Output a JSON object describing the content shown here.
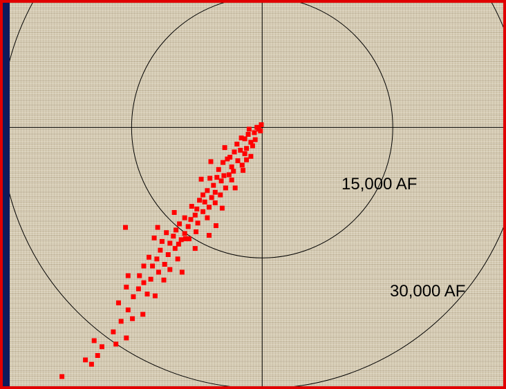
{
  "colors": {
    "points": "#ff0000",
    "border": "#e00000",
    "background": "#d6ccb4",
    "lines": "#000000",
    "left_strip": "#0e1a5c"
  },
  "chart_data": {
    "type": "scatter",
    "title": "",
    "xlabel": "",
    "ylabel": "",
    "rings": [
      {
        "label": "15,000 AF",
        "radius": 15000
      },
      {
        "label": "30,000 AF",
        "radius": 30000
      }
    ],
    "xlim": [
      -29000,
      28000
    ],
    "ylim": [
      -29500,
      14200
    ],
    "grid": false,
    "legend": "none",
    "series": [
      {
        "marker": "square",
        "points": [
          [
            -200,
            -400
          ],
          [
            -400,
            -200
          ],
          [
            -600,
            0
          ],
          [
            -100,
            300
          ],
          [
            -1500,
            -200
          ],
          [
            -900,
            -600
          ],
          [
            -1600,
            -800
          ],
          [
            -2000,
            -1300
          ],
          [
            -800,
            -1400
          ],
          [
            -1300,
            -1700
          ],
          [
            -2400,
            -1200
          ],
          [
            -2900,
            -1900
          ],
          [
            -1800,
            -2400
          ],
          [
            -1100,
            -2100
          ],
          [
            -2500,
            -2600
          ],
          [
            -2000,
            -3000
          ],
          [
            -1300,
            -3300
          ],
          [
            -3200,
            -2800
          ],
          [
            -3700,
            -3400
          ],
          [
            -2800,
            -3800
          ],
          [
            -1800,
            -3700
          ],
          [
            -2300,
            -4300
          ],
          [
            -3500,
            -4500
          ],
          [
            -4000,
            -3600
          ],
          [
            -4500,
            -4000
          ],
          [
            -3300,
            -5000
          ],
          [
            -2200,
            -4900
          ],
          [
            -3800,
            -5400
          ],
          [
            -4400,
            -5500
          ],
          [
            -5000,
            -4800
          ],
          [
            -4700,
            -6100
          ],
          [
            -5200,
            -5700
          ],
          [
            -3500,
            -6000
          ],
          [
            -4200,
            -6900
          ],
          [
            -5600,
            -6600
          ],
          [
            -6000,
            -5800
          ],
          [
            -5400,
            -7400
          ],
          [
            -6300,
            -7200
          ],
          [
            -4800,
            -7700
          ],
          [
            -6800,
            -7700
          ],
          [
            -5800,
            -8000
          ],
          [
            -6600,
            -8500
          ],
          [
            -7200,
            -8300
          ],
          [
            -5400,
            -8600
          ],
          [
            -6100,
            -9100
          ],
          [
            -7500,
            -9300
          ],
          [
            -6800,
            -9600
          ],
          [
            -8100,
            -9000
          ],
          [
            -7700,
            -10000
          ],
          [
            -6300,
            -10300
          ],
          [
            -8200,
            -10500
          ],
          [
            -7400,
            -10900
          ],
          [
            -8900,
            -10300
          ],
          [
            -9500,
            -11000
          ],
          [
            -8500,
            -11300
          ],
          [
            -9900,
            -11700
          ],
          [
            -7600,
            -11900
          ],
          [
            -8900,
            -12100
          ],
          [
            -10200,
            -12400
          ],
          [
            -9300,
            -12800
          ],
          [
            -11000,
            -12000
          ],
          [
            -10600,
            -13200
          ],
          [
            -8400,
            -12700
          ],
          [
            -11500,
            -13000
          ],
          [
            -10000,
            -13800
          ],
          [
            -11700,
            -14000
          ],
          [
            -10800,
            -14500
          ],
          [
            -9700,
            -15000
          ],
          [
            -12100,
            -15000
          ],
          [
            -11200,
            -15600
          ],
          [
            -12600,
            -15800
          ],
          [
            -13000,
            -14800
          ],
          [
            -11900,
            -16500
          ],
          [
            -10600,
            -16200
          ],
          [
            -12800,
            -17300
          ],
          [
            -13600,
            -17700
          ],
          [
            -14100,
            -16900
          ],
          [
            -14200,
            -18400
          ],
          [
            -13200,
            -19000
          ],
          [
            -14800,
            -19300
          ],
          [
            -15600,
            -18200
          ],
          [
            -16500,
            -20000
          ],
          [
            -15400,
            -20800
          ],
          [
            -13700,
            -21300
          ],
          [
            -14900,
            -21800
          ],
          [
            -16200,
            -22100
          ],
          [
            -17100,
            -23300
          ],
          [
            -16800,
            -24700
          ],
          [
            -15600,
            -24000
          ],
          [
            -18400,
            -25000
          ],
          [
            -19300,
            -24300
          ],
          [
            -18900,
            -26000
          ],
          [
            -19600,
            -27000
          ],
          [
            -20300,
            -26500
          ],
          [
            -23000,
            -28400
          ],
          [
            -8800,
            -12700
          ],
          [
            -7700,
            -13800
          ],
          [
            -6100,
            -12300
          ],
          [
            -12000,
            -11400
          ],
          [
            -15700,
            -11400
          ],
          [
            -5300,
            -11200
          ],
          [
            -9200,
            -16500
          ],
          [
            -4600,
            -9200
          ],
          [
            -3100,
            -6900
          ],
          [
            -10100,
            -9700
          ],
          [
            -9600,
            -13300
          ],
          [
            -12400,
            -12600
          ],
          [
            -11300,
            -17400
          ],
          [
            -13600,
            -15800
          ],
          [
            -5900,
            -3900
          ],
          [
            -4300,
            -2300
          ],
          [
            -7000,
            -5900
          ],
          [
            -12300,
            -19200
          ],
          [
            -15400,
            -16900
          ]
        ]
      }
    ]
  }
}
